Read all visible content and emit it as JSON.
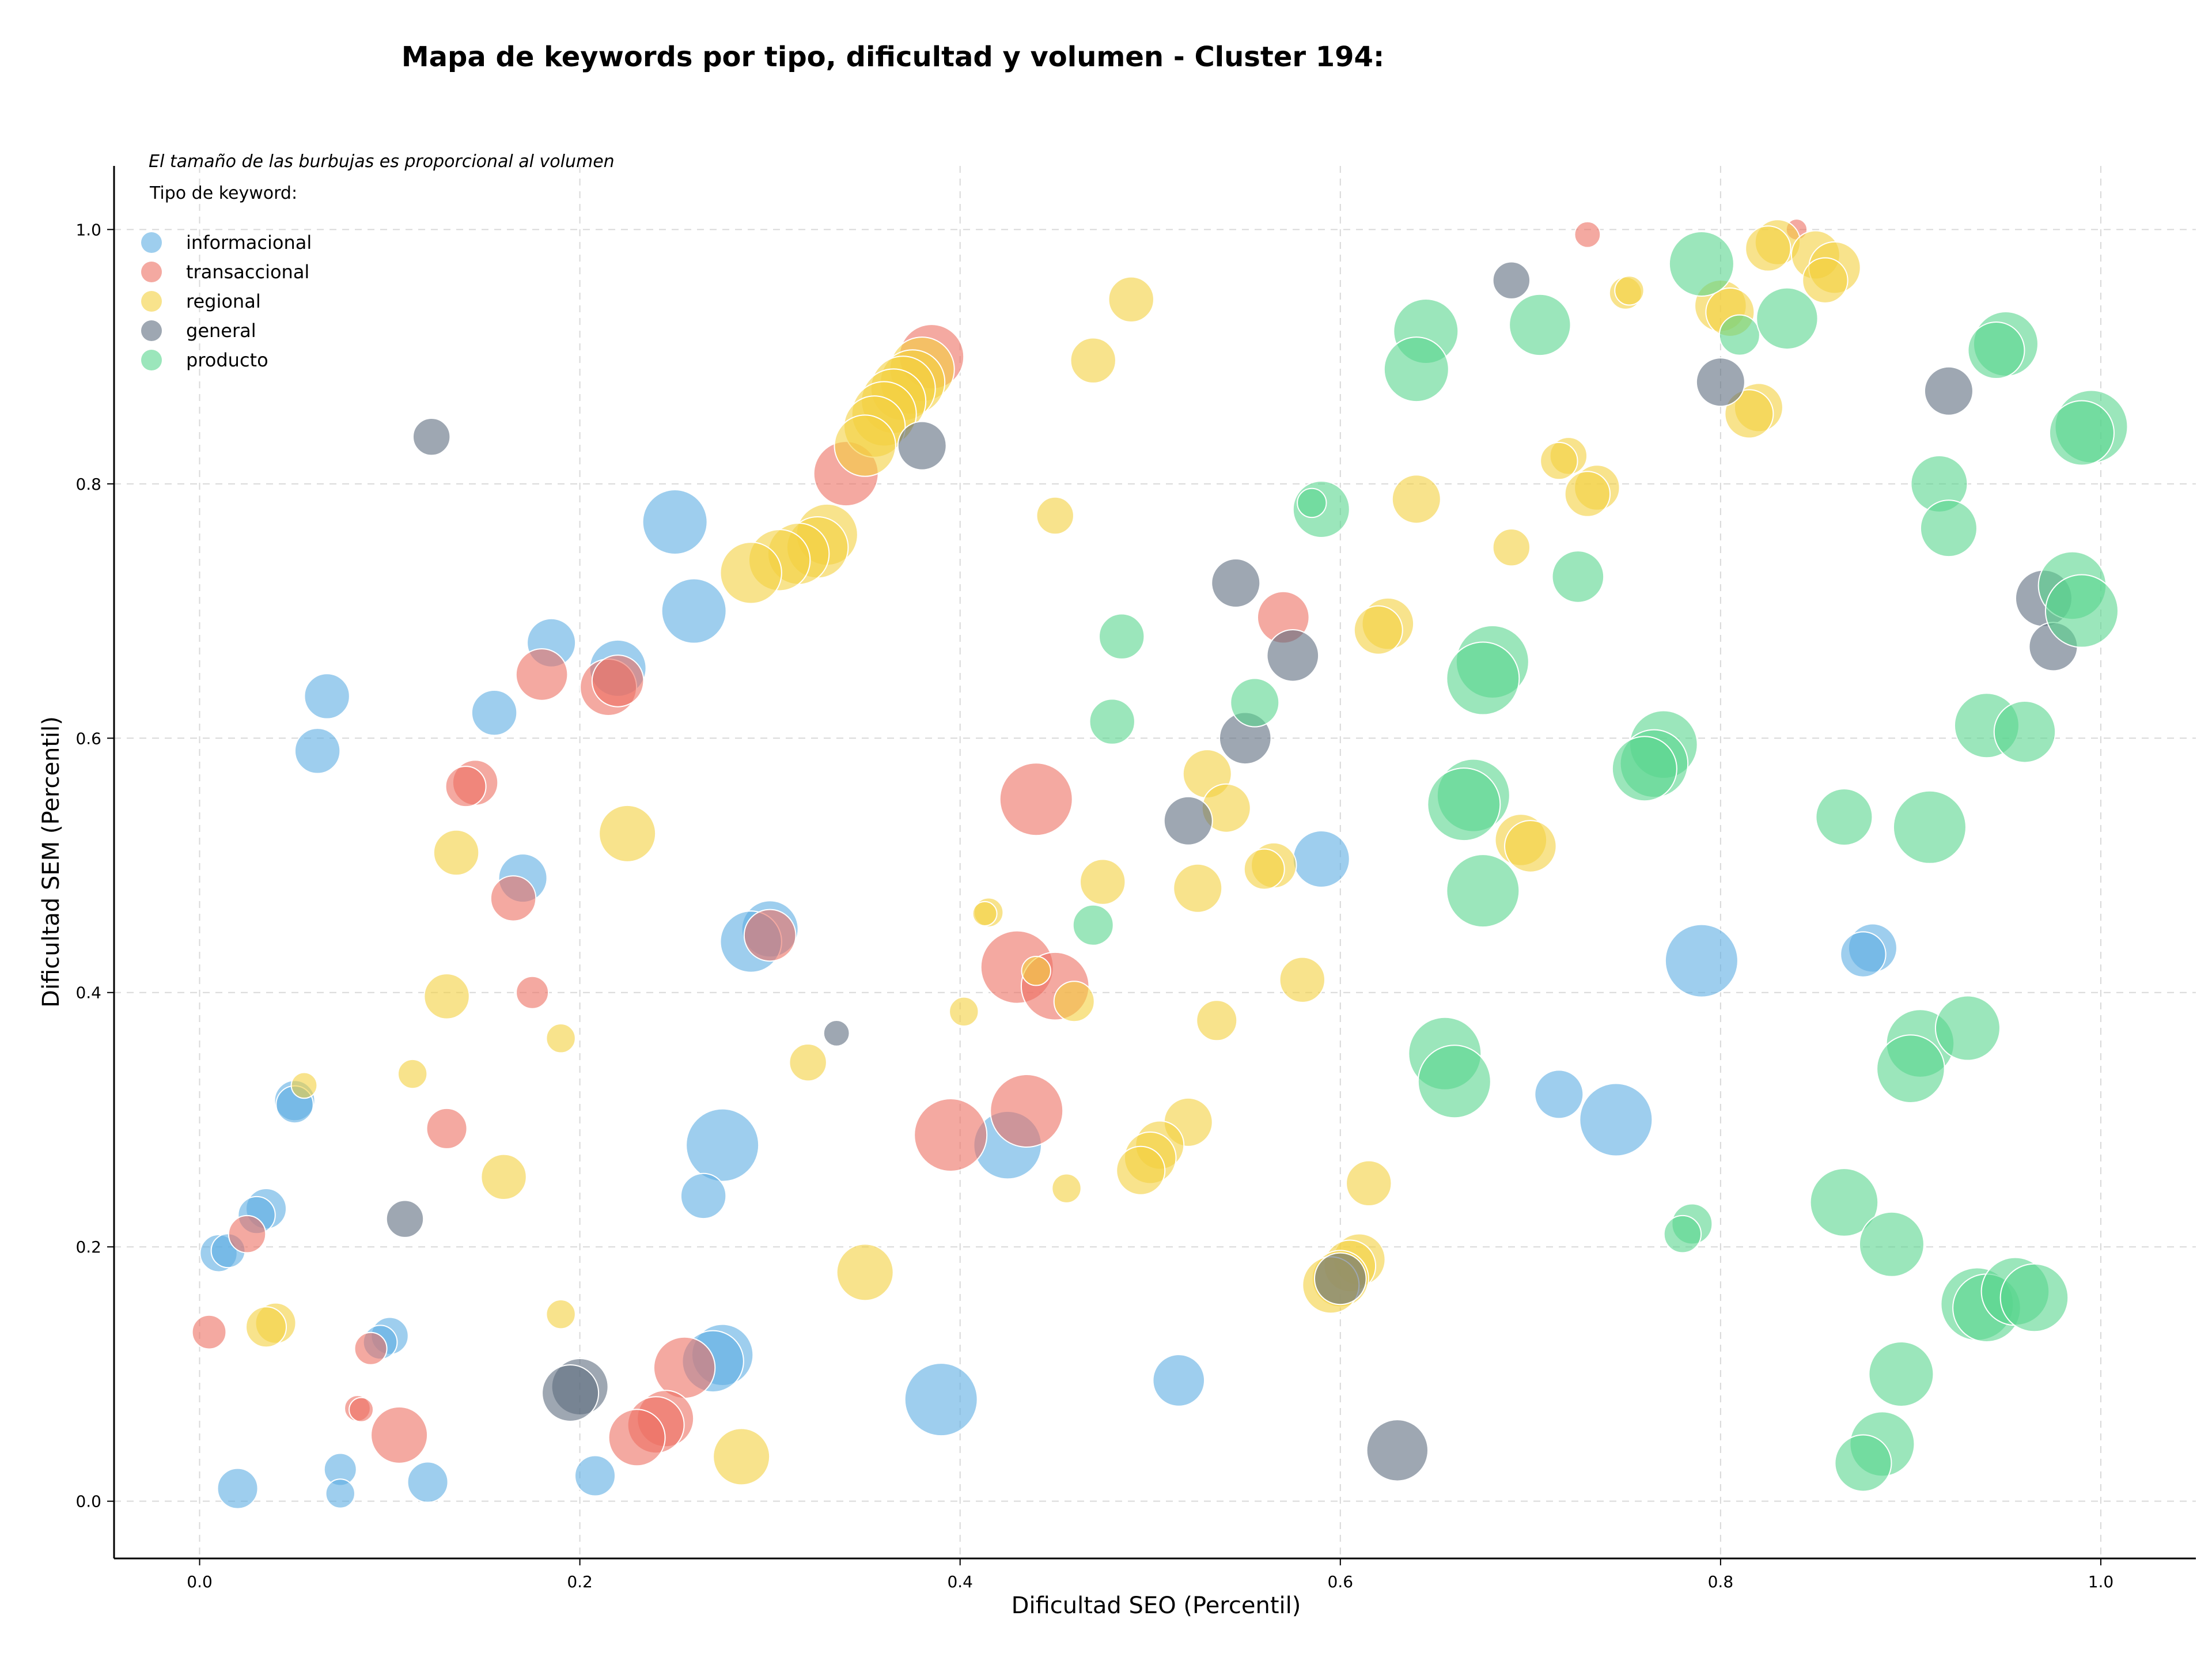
{
  "chart_data": {
    "type": "scatter",
    "title": "Mapa de keywords por tipo, dificultad y volumen - Cluster 194:",
    "xlabel": "Dificultad SEO (Percentil)",
    "ylabel": "Dificultad SEM (Percentil)",
    "note": "El tamaño de las burbujas es proporcional al volumen",
    "legend_title": "Tipo de keyword:",
    "legend_position": "top-left",
    "grid": true,
    "xlim": [
      -0.045,
      1.05
    ],
    "ylim": [
      -0.045,
      1.05
    ],
    "xticks": [
      0.0,
      0.2,
      0.4,
      0.6,
      0.8,
      1.0
    ],
    "yticks": [
      0.0,
      0.2,
      0.4,
      0.6,
      0.8,
      1.0
    ],
    "xtick_labels": [
      "0.0",
      "0.2",
      "0.4",
      "0.6",
      "0.8",
      "1.0"
    ],
    "ytick_labels": [
      "0.0",
      "0.2",
      "0.4",
      "0.6",
      "0.8",
      "1.0"
    ],
    "size_unit": "relative volume",
    "series": [
      {
        "name": "informacional",
        "color": "#5DADE2",
        "points": [
          [
            0.25,
            0.77,
            4
          ],
          [
            0.26,
            0.7,
            4
          ],
          [
            0.185,
            0.675,
            3
          ],
          [
            0.22,
            0.655,
            3.5
          ],
          [
            0.067,
            0.633,
            2.8
          ],
          [
            0.155,
            0.62,
            2.8
          ],
          [
            0.062,
            0.59,
            2.8
          ],
          [
            0.17,
            0.49,
            3
          ],
          [
            0.3,
            0.45,
            3.5
          ],
          [
            0.29,
            0.44,
            3.8
          ],
          [
            0.59,
            0.505,
            3.5
          ],
          [
            0.88,
            0.435,
            3
          ],
          [
            0.875,
            0.43,
            2.8
          ],
          [
            0.79,
            0.425,
            4.5
          ],
          [
            0.05,
            0.315,
            2.5
          ],
          [
            0.05,
            0.312,
            2.3
          ],
          [
            0.715,
            0.32,
            3
          ],
          [
            0.745,
            0.3,
            4.5
          ],
          [
            0.275,
            0.28,
            4.5
          ],
          [
            0.425,
            0.28,
            4.2
          ],
          [
            0.265,
            0.24,
            2.8
          ],
          [
            0.035,
            0.23,
            2.5
          ],
          [
            0.03,
            0.225,
            2.3
          ],
          [
            0.01,
            0.195,
            2.3
          ],
          [
            0.015,
            0.197,
            2.1
          ],
          [
            0.1,
            0.13,
            2.3
          ],
          [
            0.095,
            0.125,
            2.1
          ],
          [
            0.275,
            0.115,
            3.8
          ],
          [
            0.27,
            0.11,
            3.8
          ],
          [
            0.515,
            0.095,
            3.2
          ],
          [
            0.39,
            0.08,
            4.5
          ],
          [
            0.074,
            0.025,
            2
          ],
          [
            0.074,
            0.006,
            1.8
          ],
          [
            0.12,
            0.015,
            2.5
          ],
          [
            0.02,
            0.01,
            2.5
          ],
          [
            0.208,
            0.02,
            2.5
          ]
        ]
      },
      {
        "name": "transaccional",
        "color": "#EC7063",
        "points": [
          [
            0.385,
            0.9,
            4
          ],
          [
            0.34,
            0.808,
            4
          ],
          [
            0.18,
            0.65,
            3.2
          ],
          [
            0.215,
            0.64,
            3.5
          ],
          [
            0.22,
            0.645,
            3.2
          ],
          [
            0.57,
            0.695,
            3.2
          ],
          [
            0.145,
            0.565,
            2.8
          ],
          [
            0.14,
            0.562,
            2.5
          ],
          [
            0.44,
            0.552,
            4.5
          ],
          [
            0.165,
            0.474,
            2.8
          ],
          [
            0.3,
            0.445,
            3.2
          ],
          [
            0.43,
            0.42,
            4.5
          ],
          [
            0.45,
            0.405,
            4.2
          ],
          [
            0.175,
            0.4,
            2
          ],
          [
            0.13,
            0.293,
            2.5
          ],
          [
            0.435,
            0.307,
            4.5
          ],
          [
            0.395,
            0.288,
            4.5
          ],
          [
            0.025,
            0.21,
            2.3
          ],
          [
            0.005,
            0.133,
            2.1
          ],
          [
            0.09,
            0.12,
            2
          ],
          [
            0.083,
            0.073,
            1.6
          ],
          [
            0.085,
            0.072,
            1.5
          ],
          [
            0.105,
            0.052,
            3.5
          ],
          [
            0.255,
            0.105,
            3.8
          ],
          [
            0.245,
            0.065,
            3.5
          ],
          [
            0.24,
            0.06,
            3.5
          ],
          [
            0.23,
            0.05,
            3.5
          ],
          [
            0.73,
            0.996,
            1.6
          ],
          [
            0.84,
            1.0,
            1.3
          ]
        ]
      },
      {
        "name": "regional",
        "color": "#F4D03F",
        "points": [
          [
            0.38,
            0.89,
            4
          ],
          [
            0.375,
            0.88,
            4
          ],
          [
            0.37,
            0.875,
            4
          ],
          [
            0.365,
            0.865,
            4
          ],
          [
            0.36,
            0.855,
            4
          ],
          [
            0.355,
            0.845,
            3.8
          ],
          [
            0.35,
            0.83,
            3.8
          ],
          [
            0.33,
            0.76,
            3.8
          ],
          [
            0.325,
            0.75,
            3.8
          ],
          [
            0.315,
            0.745,
            3.8
          ],
          [
            0.305,
            0.74,
            3.8
          ],
          [
            0.29,
            0.73,
            3.8
          ],
          [
            0.49,
            0.945,
            2.8
          ],
          [
            0.47,
            0.897,
            2.8
          ],
          [
            0.45,
            0.775,
            2.3
          ],
          [
            0.64,
            0.788,
            3
          ],
          [
            0.625,
            0.69,
            3.2
          ],
          [
            0.62,
            0.685,
            3
          ],
          [
            0.72,
            0.822,
            2.3
          ],
          [
            0.715,
            0.818,
            2.3
          ],
          [
            0.735,
            0.797,
            2.8
          ],
          [
            0.73,
            0.792,
            2.8
          ],
          [
            0.69,
            0.75,
            2.3
          ],
          [
            0.75,
            0.95,
            2
          ],
          [
            0.752,
            0.952,
            1.8
          ],
          [
            0.83,
            0.99,
            2.8
          ],
          [
            0.825,
            0.985,
            2.8
          ],
          [
            0.85,
            0.98,
            3
          ],
          [
            0.86,
            0.97,
            3.2
          ],
          [
            0.855,
            0.96,
            2.8
          ],
          [
            0.8,
            0.94,
            3.2
          ],
          [
            0.805,
            0.935,
            3
          ],
          [
            0.82,
            0.86,
            3
          ],
          [
            0.815,
            0.855,
            3
          ],
          [
            0.53,
            0.572,
            3
          ],
          [
            0.54,
            0.545,
            3
          ],
          [
            0.565,
            0.5,
            2.8
          ],
          [
            0.56,
            0.497,
            2.5
          ],
          [
            0.525,
            0.482,
            3
          ],
          [
            0.475,
            0.487,
            2.8
          ],
          [
            0.415,
            0.463,
            1.8
          ],
          [
            0.413,
            0.462,
            1.5
          ],
          [
            0.44,
            0.417,
            1.8
          ],
          [
            0.46,
            0.393,
            2.5
          ],
          [
            0.402,
            0.385,
            1.8
          ],
          [
            0.535,
            0.378,
            2.5
          ],
          [
            0.58,
            0.41,
            2.8
          ],
          [
            0.695,
            0.52,
            3.2
          ],
          [
            0.7,
            0.515,
            3.2
          ],
          [
            0.225,
            0.525,
            3.5
          ],
          [
            0.135,
            0.51,
            2.8
          ],
          [
            0.13,
            0.397,
            2.8
          ],
          [
            0.19,
            0.364,
            1.8
          ],
          [
            0.112,
            0.336,
            1.8
          ],
          [
            0.055,
            0.327,
            1.6
          ],
          [
            0.32,
            0.345,
            2.3
          ],
          [
            0.16,
            0.255,
            2.8
          ],
          [
            0.52,
            0.298,
            3
          ],
          [
            0.505,
            0.28,
            3
          ],
          [
            0.5,
            0.27,
            3.2
          ],
          [
            0.495,
            0.26,
            3
          ],
          [
            0.456,
            0.246,
            1.8
          ],
          [
            0.615,
            0.25,
            2.8
          ],
          [
            0.61,
            0.19,
            3.2
          ],
          [
            0.605,
            0.185,
            3.2
          ],
          [
            0.6,
            0.175,
            3.5
          ],
          [
            0.595,
            0.17,
            3.5
          ],
          [
            0.35,
            0.18,
            3.5
          ],
          [
            0.04,
            0.14,
            2.5
          ],
          [
            0.035,
            0.137,
            2.5
          ],
          [
            0.19,
            0.147,
            1.8
          ],
          [
            0.285,
            0.035,
            3.5
          ]
        ]
      },
      {
        "name": "general",
        "color": "#5D6D7E",
        "points": [
          [
            0.69,
            0.96,
            2.3
          ],
          [
            0.8,
            0.88,
            3
          ],
          [
            0.92,
            0.873,
            3
          ],
          [
            0.38,
            0.83,
            3
          ],
          [
            0.122,
            0.837,
            2.3
          ],
          [
            0.545,
            0.722,
            3
          ],
          [
            0.575,
            0.665,
            3.2
          ],
          [
            0.55,
            0.6,
            3.2
          ],
          [
            0.52,
            0.535,
            3
          ],
          [
            0.97,
            0.71,
            3.5
          ],
          [
            0.975,
            0.672,
            3
          ],
          [
            0.335,
            0.368,
            1.6
          ],
          [
            0.108,
            0.222,
            2.3
          ],
          [
            0.2,
            0.09,
            3.5
          ],
          [
            0.195,
            0.085,
            3.5
          ],
          [
            0.6,
            0.175,
            3.2
          ],
          [
            0.63,
            0.04,
            3.8
          ]
        ]
      },
      {
        "name": "producto",
        "color": "#58D68D",
        "points": [
          [
            0.79,
            0.973,
            4
          ],
          [
            0.645,
            0.92,
            4
          ],
          [
            0.64,
            0.89,
            4
          ],
          [
            0.705,
            0.925,
            3.8
          ],
          [
            0.81,
            0.917,
            2.5
          ],
          [
            0.835,
            0.93,
            3.8
          ],
          [
            0.95,
            0.91,
            4
          ],
          [
            0.945,
            0.905,
            3.5
          ],
          [
            0.995,
            0.845,
            4.5
          ],
          [
            0.99,
            0.84,
            4
          ],
          [
            0.915,
            0.8,
            3.5
          ],
          [
            0.92,
            0.765,
            3.5
          ],
          [
            0.59,
            0.78,
            3.5
          ],
          [
            0.585,
            0.785,
            1.8
          ],
          [
            0.725,
            0.727,
            3.2
          ],
          [
            0.485,
            0.68,
            2.8
          ],
          [
            0.48,
            0.613,
            2.8
          ],
          [
            0.555,
            0.628,
            3
          ],
          [
            0.985,
            0.72,
            4.2
          ],
          [
            0.99,
            0.7,
            4.5
          ],
          [
            0.68,
            0.66,
            4.5
          ],
          [
            0.675,
            0.647,
            4.5
          ],
          [
            0.77,
            0.595,
            4.2
          ],
          [
            0.765,
            0.58,
            4.2
          ],
          [
            0.76,
            0.576,
            4
          ],
          [
            0.94,
            0.61,
            4
          ],
          [
            0.96,
            0.605,
            3.8
          ],
          [
            0.67,
            0.555,
            4.5
          ],
          [
            0.665,
            0.548,
            4.5
          ],
          [
            0.91,
            0.53,
            4.5
          ],
          [
            0.865,
            0.538,
            3.5
          ],
          [
            0.675,
            0.48,
            4.5
          ],
          [
            0.47,
            0.453,
            2.5
          ],
          [
            0.655,
            0.352,
            4.5
          ],
          [
            0.66,
            0.33,
            4.5
          ],
          [
            0.905,
            0.36,
            4.2
          ],
          [
            0.9,
            0.34,
            4.2
          ],
          [
            0.93,
            0.372,
            4
          ],
          [
            0.865,
            0.235,
            4.2
          ],
          [
            0.89,
            0.202,
            4
          ],
          [
            0.785,
            0.218,
            2.5
          ],
          [
            0.78,
            0.21,
            2.3
          ],
          [
            0.935,
            0.155,
            4.5
          ],
          [
            0.94,
            0.152,
            4.2
          ],
          [
            0.955,
            0.165,
            4.2
          ],
          [
            0.965,
            0.16,
            4.2
          ],
          [
            0.895,
            0.1,
            4
          ],
          [
            0.885,
            0.045,
            4
          ],
          [
            0.875,
            0.03,
            3.5
          ]
        ]
      }
    ]
  }
}
